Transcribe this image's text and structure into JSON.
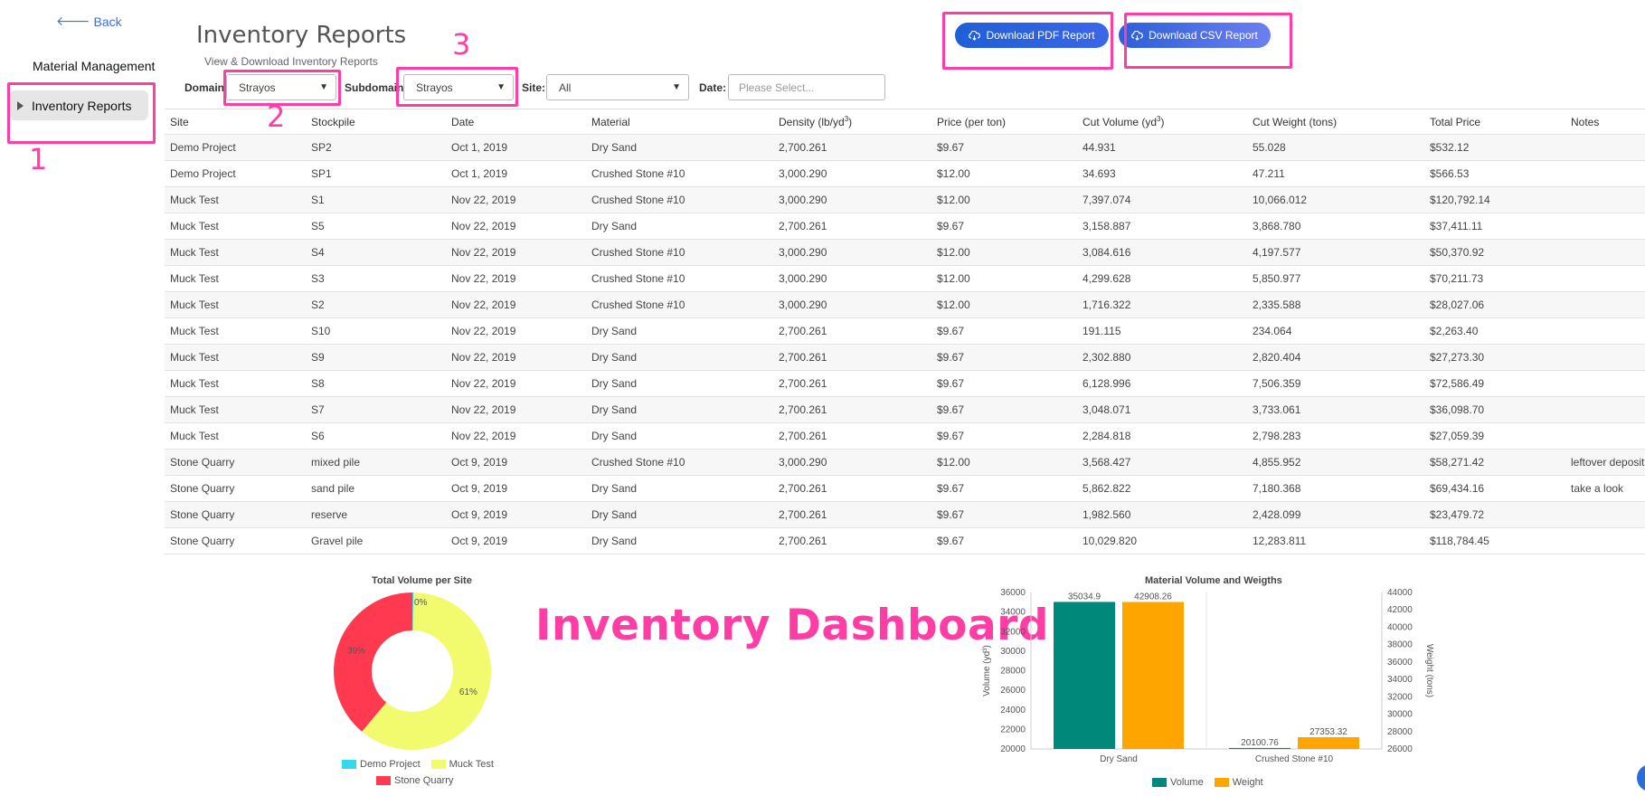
{
  "sidebar": {
    "back_label": "Back",
    "title": "Material Management",
    "items": [
      {
        "label": "Inventory Reports"
      }
    ]
  },
  "header": {
    "title": "Inventory Reports",
    "subtitle": "View & Download Inventory Reports"
  },
  "filters": {
    "domain_label": "Domain:",
    "domain_value": "Strayos",
    "subdomain_label": "Subdomain:",
    "subdomain_value": "Strayos",
    "site_label": "Site:",
    "site_value": "All",
    "date_label": "Date:",
    "date_placeholder": "Please Select..."
  },
  "buttons": {
    "pdf_label": "Download PDF Report",
    "csv_label": "Download CSV Report"
  },
  "annotations": {
    "n1": "1",
    "n2": "2",
    "n3": "3",
    "dashboard": "Inventory Dashboard"
  },
  "table": {
    "headers": {
      "site": "Site",
      "stockpile": "Stockpile",
      "date": "Date",
      "material": "Material",
      "density": "Density (lb/yd",
      "density_sup": "3",
      "density_end": ")",
      "price": "Price (per ton)",
      "volume": "Cut Volume (yd",
      "volume_sup": "3",
      "volume_end": ")",
      "weight": "Cut Weight (tons)",
      "total": "Total Price",
      "notes": "Notes"
    },
    "rows": [
      {
        "site": "Demo Project",
        "stockpile": "SP2",
        "date": "Oct 1, 2019",
        "material": "Dry Sand",
        "density": "2,700.261",
        "price": "$9.67",
        "volume": "44.931",
        "weight": "55.028",
        "total": "$532.12",
        "notes": ""
      },
      {
        "site": "Demo Project",
        "stockpile": "SP1",
        "date": "Oct 1, 2019",
        "material": "Crushed Stone #10",
        "density": "3,000.290",
        "price": "$12.00",
        "volume": "34.693",
        "weight": "47.211",
        "total": "$566.53",
        "notes": ""
      },
      {
        "site": "Muck Test",
        "stockpile": "S1",
        "date": "Nov 22, 2019",
        "material": "Crushed Stone #10",
        "density": "3,000.290",
        "price": "$12.00",
        "volume": "7,397.074",
        "weight": "10,066.012",
        "total": "$120,792.14",
        "notes": ""
      },
      {
        "site": "Muck Test",
        "stockpile": "S5",
        "date": "Nov 22, 2019",
        "material": "Dry Sand",
        "density": "2,700.261",
        "price": "$9.67",
        "volume": "3,158.887",
        "weight": "3,868.780",
        "total": "$37,411.11",
        "notes": ""
      },
      {
        "site": "Muck Test",
        "stockpile": "S4",
        "date": "Nov 22, 2019",
        "material": "Crushed Stone #10",
        "density": "3,000.290",
        "price": "$12.00",
        "volume": "3,084.616",
        "weight": "4,197.577",
        "total": "$50,370.92",
        "notes": ""
      },
      {
        "site": "Muck Test",
        "stockpile": "S3",
        "date": "Nov 22, 2019",
        "material": "Crushed Stone #10",
        "density": "3,000.290",
        "price": "$12.00",
        "volume": "4,299.628",
        "weight": "5,850.977",
        "total": "$70,211.73",
        "notes": ""
      },
      {
        "site": "Muck Test",
        "stockpile": "S2",
        "date": "Nov 22, 2019",
        "material": "Crushed Stone #10",
        "density": "3,000.290",
        "price": "$12.00",
        "volume": "1,716.322",
        "weight": "2,335.588",
        "total": "$28,027.06",
        "notes": ""
      },
      {
        "site": "Muck Test",
        "stockpile": "S10",
        "date": "Nov 22, 2019",
        "material": "Dry Sand",
        "density": "2,700.261",
        "price": "$9.67",
        "volume": "191.115",
        "weight": "234.064",
        "total": "$2,263.40",
        "notes": ""
      },
      {
        "site": "Muck Test",
        "stockpile": "S9",
        "date": "Nov 22, 2019",
        "material": "Dry Sand",
        "density": "2,700.261",
        "price": "$9.67",
        "volume": "2,302.880",
        "weight": "2,820.404",
        "total": "$27,273.30",
        "notes": ""
      },
      {
        "site": "Muck Test",
        "stockpile": "S8",
        "date": "Nov 22, 2019",
        "material": "Dry Sand",
        "density": "2,700.261",
        "price": "$9.67",
        "volume": "6,128.996",
        "weight": "7,506.359",
        "total": "$72,586.49",
        "notes": ""
      },
      {
        "site": "Muck Test",
        "stockpile": "S7",
        "date": "Nov 22, 2019",
        "material": "Dry Sand",
        "density": "2,700.261",
        "price": "$9.67",
        "volume": "3,048.071",
        "weight": "3,733.061",
        "total": "$36,098.70",
        "notes": ""
      },
      {
        "site": "Muck Test",
        "stockpile": "S6",
        "date": "Nov 22, 2019",
        "material": "Dry Sand",
        "density": "2,700.261",
        "price": "$9.67",
        "volume": "2,284.818",
        "weight": "2,798.283",
        "total": "$27,059.39",
        "notes": ""
      },
      {
        "site": "Stone Quarry",
        "stockpile": "mixed pile",
        "date": "Oct 9, 2019",
        "material": "Crushed Stone #10",
        "density": "3,000.290",
        "price": "$12.00",
        "volume": "3,568.427",
        "weight": "4,855.952",
        "total": "$58,271.42",
        "notes": "leftover deposit"
      },
      {
        "site": "Stone Quarry",
        "stockpile": "sand pile",
        "date": "Oct 9, 2019",
        "material": "Dry Sand",
        "density": "2,700.261",
        "price": "$9.67",
        "volume": "5,862.822",
        "weight": "7,180.368",
        "total": "$69,434.16",
        "notes": "take a look"
      },
      {
        "site": "Stone Quarry",
        "stockpile": "reserve",
        "date": "Oct 9, 2019",
        "material": "Dry Sand",
        "density": "2,700.261",
        "price": "$9.67",
        "volume": "1,982.560",
        "weight": "2,428.099",
        "total": "$23,479.72",
        "notes": ""
      },
      {
        "site": "Stone Quarry",
        "stockpile": "Gravel pile",
        "date": "Oct 9, 2019",
        "material": "Dry Sand",
        "density": "2,700.261",
        "price": "$9.67",
        "volume": "10,029.820",
        "weight": "12,283.811",
        "total": "$118,784.45",
        "notes": ""
      }
    ]
  },
  "chart_data": [
    {
      "type": "pie",
      "title": "Total Volume per Site",
      "categories": [
        "Demo Project",
        "Muck Test",
        "Stone Quarry"
      ],
      "values": [
        0.2,
        61,
        39
      ],
      "slice_labels": [
        "",
        "61%",
        "39%"
      ],
      "small_label": "0%",
      "colors": [
        "#36d7f0",
        "#f2fb6e",
        "#ff3a50"
      ],
      "donut": true,
      "legend": "bottom"
    },
    {
      "type": "bar",
      "title": "Material Volume and Weigths",
      "categories": [
        "Dry Sand",
        "Crushed Stone #10"
      ],
      "series": [
        {
          "name": "Volume",
          "values": [
            35034.9,
            20100.76
          ],
          "color": "#00897b",
          "axis": "left"
        },
        {
          "name": "Weight",
          "values": [
            42908.26,
            27353.32
          ],
          "color": "#ffa500",
          "axis": "right"
        }
      ],
      "ylabel": "Volume (yd³)",
      "y2label": "Weight (tons)",
      "ylim": [
        20000,
        36000
      ],
      "y2lim": [
        26000,
        44000
      ],
      "yticks": [
        20000,
        22000,
        24000,
        26000,
        28000,
        30000,
        32000,
        34000,
        36000
      ],
      "y2ticks": [
        26000,
        28000,
        30000,
        32000,
        34000,
        36000,
        38000,
        40000,
        42000,
        44000
      ],
      "legend": "bottom"
    }
  ]
}
